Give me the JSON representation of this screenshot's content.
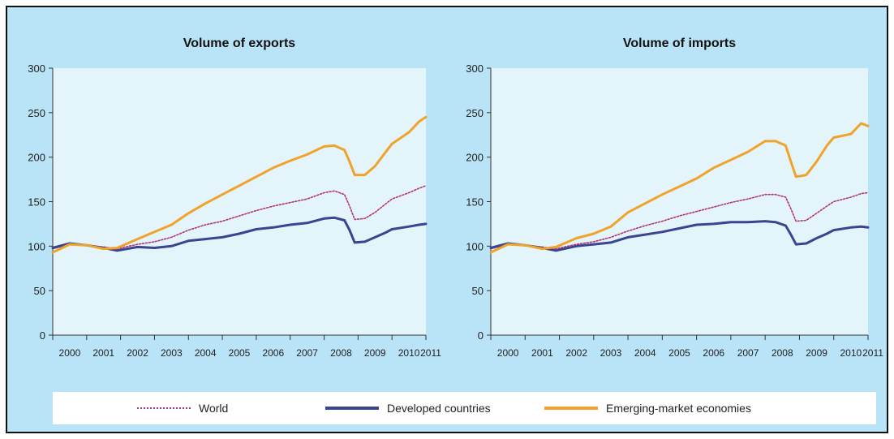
{
  "legend": {
    "world": "World",
    "developed": "Developed countries",
    "emerging": "Emerging-market economies"
  },
  "colors": {
    "background": "#b9e3f6",
    "plot_area": "#e3f4fb",
    "world": "#b0357a",
    "developed": "#3a4490",
    "emerging": "#f0a32a"
  },
  "chart_data": [
    {
      "type": "line",
      "title": "Volume of exports",
      "xlabel": "",
      "ylabel": "",
      "ylim": [
        0,
        300
      ],
      "yticks": [
        0,
        50,
        100,
        150,
        200,
        250,
        300
      ],
      "xlim": [
        2000,
        2011
      ],
      "xticks": [
        "2000",
        "2001",
        "2002",
        "2003",
        "2004",
        "2005",
        "2006",
        "2007",
        "2008",
        "2009",
        "2010",
        "2011"
      ],
      "grid": false,
      "legend_position": "bottom",
      "series": [
        {
          "name": "World",
          "style": "dotted",
          "x": [
            2000.0,
            2000.5,
            2001.0,
            2001.5,
            2001.9,
            2002.5,
            2003.0,
            2003.5,
            2004.0,
            2004.5,
            2005.0,
            2005.5,
            2006.0,
            2006.5,
            2007.0,
            2007.5,
            2008.0,
            2008.3,
            2008.6,
            2008.75,
            2008.9,
            2009.2,
            2009.5,
            2009.8,
            2010.0,
            2010.5,
            2010.8,
            2011.0
          ],
          "values": [
            97,
            102,
            101,
            99,
            97,
            102,
            105,
            110,
            118,
            124,
            128,
            134,
            140,
            145,
            149,
            153,
            160,
            162,
            158,
            145,
            130,
            131,
            138,
            147,
            153,
            160,
            165,
            168
          ]
        },
        {
          "name": "Developed countries",
          "x": [
            2000.0,
            2000.5,
            2001.0,
            2001.5,
            2001.9,
            2002.5,
            2003.0,
            2003.5,
            2004.0,
            2004.5,
            2005.0,
            2005.5,
            2006.0,
            2006.5,
            2007.0,
            2007.5,
            2008.0,
            2008.3,
            2008.6,
            2008.75,
            2008.9,
            2009.2,
            2009.5,
            2009.8,
            2010.0,
            2010.5,
            2010.8,
            2011.0
          ],
          "values": [
            98,
            103,
            101,
            98,
            95,
            99,
            98,
            100,
            106,
            108,
            110,
            114,
            119,
            121,
            124,
            126,
            131,
            132,
            129,
            118,
            104,
            105,
            110,
            115,
            119,
            122,
            124,
            125
          ]
        },
        {
          "name": "Emerging-market economies",
          "x": [
            2000.0,
            2000.5,
            2001.0,
            2001.5,
            2001.9,
            2002.5,
            2003.0,
            2003.5,
            2004.0,
            2004.5,
            2005.0,
            2005.5,
            2006.0,
            2006.5,
            2007.0,
            2007.5,
            2008.0,
            2008.3,
            2008.6,
            2008.75,
            2008.9,
            2009.2,
            2009.5,
            2009.8,
            2010.0,
            2010.5,
            2010.8,
            2011.0
          ],
          "values": [
            93,
            102,
            101,
            97,
            98,
            108,
            116,
            124,
            137,
            148,
            158,
            168,
            178,
            188,
            196,
            203,
            212,
            213,
            208,
            195,
            180,
            180,
            190,
            205,
            215,
            228,
            240,
            245
          ]
        }
      ]
    },
    {
      "type": "line",
      "title": "Volume of imports",
      "xlabel": "",
      "ylabel": "",
      "ylim": [
        0,
        300
      ],
      "yticks": [
        0,
        50,
        100,
        150,
        200,
        250,
        300
      ],
      "xlim": [
        2000,
        2011
      ],
      "xticks": [
        "2000",
        "2001",
        "2002",
        "2003",
        "2004",
        "2005",
        "2006",
        "2007",
        "2008",
        "2009",
        "2010",
        "2011"
      ],
      "grid": false,
      "legend_position": "bottom",
      "series": [
        {
          "name": "World",
          "style": "dotted",
          "x": [
            2000.0,
            2000.5,
            2001.0,
            2001.5,
            2001.9,
            2002.5,
            2003.0,
            2003.5,
            2004.0,
            2004.5,
            2005.0,
            2005.5,
            2006.0,
            2006.5,
            2007.0,
            2007.5,
            2008.0,
            2008.3,
            2008.6,
            2008.75,
            2008.9,
            2009.2,
            2009.5,
            2009.8,
            2010.0,
            2010.5,
            2010.8,
            2011.0
          ],
          "values": [
            97,
            102,
            101,
            99,
            97,
            102,
            105,
            110,
            117,
            123,
            128,
            134,
            139,
            144,
            149,
            153,
            158,
            158,
            155,
            142,
            128,
            129,
            137,
            145,
            150,
            155,
            159,
            160
          ]
        },
        {
          "name": "Developed countries",
          "x": [
            2000.0,
            2000.5,
            2001.0,
            2001.5,
            2001.9,
            2002.5,
            2003.0,
            2003.5,
            2004.0,
            2004.5,
            2005.0,
            2005.5,
            2006.0,
            2006.5,
            2007.0,
            2007.5,
            2008.0,
            2008.3,
            2008.6,
            2008.75,
            2008.9,
            2009.2,
            2009.5,
            2009.8,
            2010.0,
            2010.5,
            2010.8,
            2011.0
          ],
          "values": [
            98,
            103,
            101,
            98,
            95,
            100,
            102,
            104,
            110,
            113,
            116,
            120,
            124,
            125,
            127,
            127,
            128,
            127,
            123,
            113,
            102,
            103,
            109,
            114,
            118,
            121,
            122,
            121
          ]
        },
        {
          "name": "Emerging-market economies",
          "x": [
            2000.0,
            2000.5,
            2001.0,
            2001.5,
            2001.9,
            2002.5,
            2003.0,
            2003.5,
            2004.0,
            2004.5,
            2005.0,
            2005.5,
            2006.0,
            2006.5,
            2007.0,
            2007.5,
            2008.0,
            2008.3,
            2008.6,
            2008.75,
            2008.9,
            2009.2,
            2009.5,
            2009.8,
            2010.0,
            2010.5,
            2010.8,
            2011.0
          ],
          "values": [
            93,
            102,
            101,
            97,
            99,
            109,
            114,
            122,
            138,
            148,
            158,
            167,
            176,
            188,
            197,
            206,
            218,
            218,
            213,
            195,
            178,
            180,
            195,
            213,
            222,
            226,
            238,
            235
          ]
        }
      ]
    }
  ]
}
